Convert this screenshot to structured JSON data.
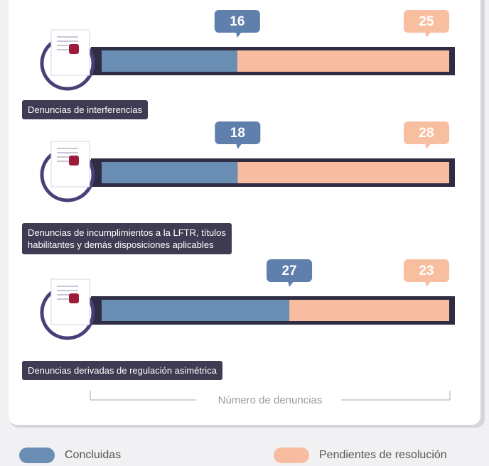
{
  "chart_data": {
    "type": "bar",
    "orientation": "horizontal",
    "stacked": "percent",
    "categories": [
      "Denuncias de interferencias",
      "Denuncias de incumplimientos a la LFTR, títulos\nhabilitantes y demás disposiciones aplicables",
      "Denuncias derivadas de regulación asimétrica"
    ],
    "series": [
      {
        "name": "Concluidas",
        "color": "#6a8db4",
        "values": [
          16,
          18,
          27
        ]
      },
      {
        "name": "Pendientes de resolución",
        "color": "#f8bca0",
        "values": [
          25,
          28,
          23
        ]
      }
    ],
    "x_label": "Número de denuncias"
  }
}
